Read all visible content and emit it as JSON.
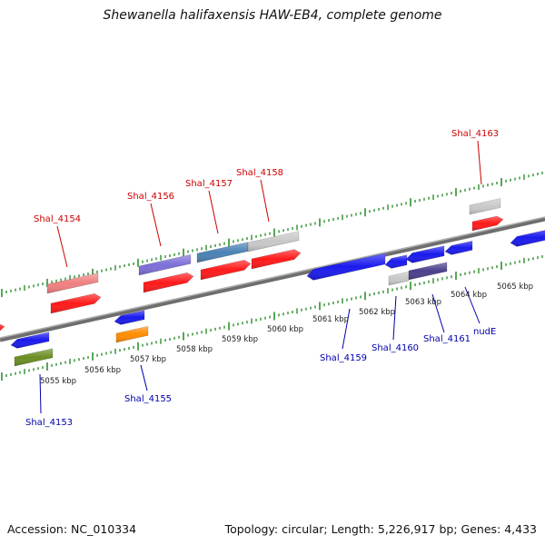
{
  "title": "Shewanella halifaxensis HAW-EB4, complete genome",
  "footer": {
    "accession": "Accession: NC_010334",
    "summary": "Topology: circular; Length: 5,226,917 bp; Genes: 4,433"
  },
  "colors": {
    "backbone": "#8a8a8a",
    "tick": "#2f8f2f",
    "forward_label": "#cc0000",
    "reverse_label": "#0000aa",
    "scale_text": "#222222"
  },
  "scale_labels": [
    "5055 kbp",
    "5056 kbp",
    "5057 kbp",
    "5058 kbp",
    "5059 kbp",
    "5060 kbp",
    "5061 kbp",
    "5062 kbp",
    "5063 kbp",
    "5064 kbp",
    "5065 kbp"
  ],
  "gene_labels": {
    "forward": [
      "Shal_4154",
      "Shal_4156",
      "Shal_4157",
      "Shal_4158",
      "Shal_4163"
    ],
    "reverse": [
      "Shal_4153",
      "Shal_4155",
      "Shal_4159",
      "Shal_4160",
      "Shal_4161",
      "nudE"
    ]
  },
  "feature_colors": {
    "cds_forward": "#ff1a1a",
    "cds_reverse": "#1a1aee",
    "pink": "#f08080",
    "gray": "#c8c8c8",
    "purple": "#7b6fd6",
    "dark_purple": "#4a3f8c",
    "steel": "#4a82b5",
    "olive": "#6b8e23",
    "orange": "#ff8c00"
  }
}
